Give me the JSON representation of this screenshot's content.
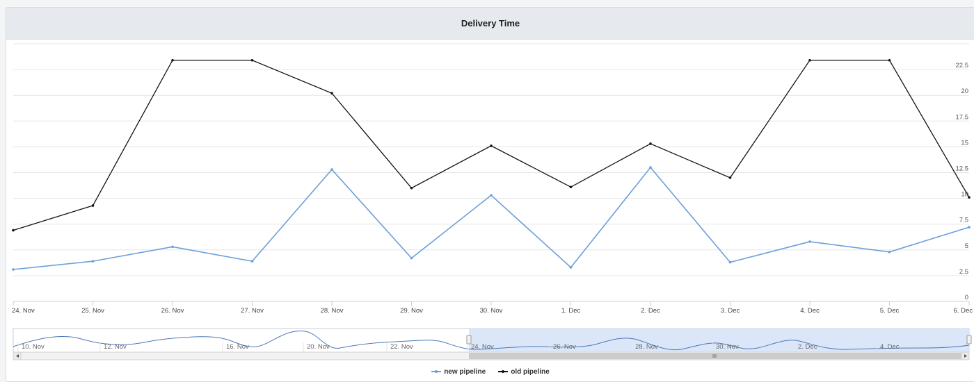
{
  "chart_data": {
    "type": "line",
    "title": "Delivery Time",
    "xlabel": "",
    "ylabel": "",
    "categories": [
      "24. Nov",
      "25. Nov",
      "26. Nov",
      "27. Nov",
      "28. Nov",
      "29. Nov",
      "30. Nov",
      "1. Dec",
      "2. Dec",
      "3. Dec",
      "4. Dec",
      "5. Dec",
      "6. Dec"
    ],
    "y_ticks": [
      "0",
      "2.5",
      "5",
      "7.5",
      "10",
      "12.5",
      "15",
      "17.5",
      "20",
      "22.5"
    ],
    "ylim": [
      0,
      25
    ],
    "y_axis_side": "right",
    "grid": true,
    "series": [
      {
        "name": "new pipeline",
        "color": "#6a9fd8",
        "values": [
          3.1,
          3.9,
          5.3,
          3.9,
          12.8,
          4.2,
          10.3,
          3.3,
          13.0,
          3.8,
          5.8,
          4.8,
          7.2
        ]
      },
      {
        "name": "old pipeline",
        "color": "#111111",
        "values": [
          6.9,
          9.3,
          23.4,
          23.4,
          20.2,
          11.0,
          15.1,
          11.1,
          15.3,
          12.0,
          23.4,
          23.4,
          10.1
        ]
      }
    ],
    "legend_position": "bottom-center"
  },
  "navigator": {
    "labels": [
      "10. Nov",
      "12. Nov",
      "16. Nov",
      "20. Nov",
      "22. Nov",
      "24. Nov",
      "26. Nov",
      "28. Nov",
      "30. Nov",
      "2. Dec",
      "4. Dec"
    ],
    "selected_from": "24. Nov",
    "selected_to": "6. Dec",
    "scroll_left_icon": "arrow-left-icon",
    "scroll_right_icon": "arrow-right-icon"
  },
  "colors": {
    "navigator_selection": "#dbe7f8",
    "navigator_line": "#4a78b8"
  }
}
